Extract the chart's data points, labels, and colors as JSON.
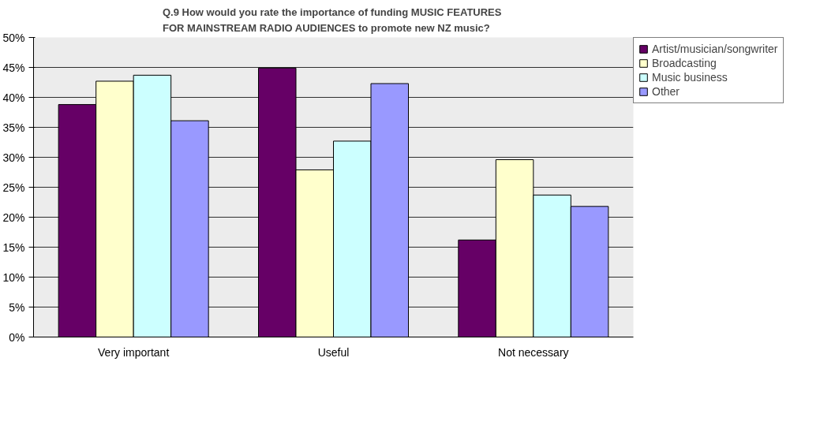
{
  "chart_data": {
    "type": "bar",
    "title": "Q.9  How would you rate the importance of funding MUSIC FEATURES FOR MAINSTREAM RADIO AUDIENCES to promote new NZ music?",
    "categories": [
      "Very important",
      "Useful",
      "Not necessary"
    ],
    "series": [
      {
        "name": "Artist/musician/songwriter",
        "color": "#660066",
        "values": [
          38.8,
          44.9,
          16.2
        ]
      },
      {
        "name": "Broadcasting",
        "color": "#ffffcc",
        "values": [
          42.7,
          27.9,
          29.6
        ]
      },
      {
        "name": "Music business",
        "color": "#ccffff",
        "values": [
          43.7,
          32.7,
          23.7
        ]
      },
      {
        "name": "Other",
        "color": "#9999ff",
        "values": [
          36.1,
          42.3,
          21.8
        ]
      }
    ],
    "ylim": [
      0,
      50
    ],
    "yticks": [
      {
        "value": 0,
        "label": "0%"
      },
      {
        "value": 5,
        "label": "5%"
      },
      {
        "value": 10,
        "label": "10%"
      },
      {
        "value": 15,
        "label": "15%"
      },
      {
        "value": 20,
        "label": "20%"
      },
      {
        "value": 25,
        "label": "25%"
      },
      {
        "value": 30,
        "label": "30%"
      },
      {
        "value": 35,
        "label": "35%"
      },
      {
        "value": 40,
        "label": "40%"
      },
      {
        "value": 45,
        "label": "45%"
      },
      {
        "value": 50,
        "label": "50%"
      }
    ],
    "grid": "y",
    "legend": "right"
  }
}
